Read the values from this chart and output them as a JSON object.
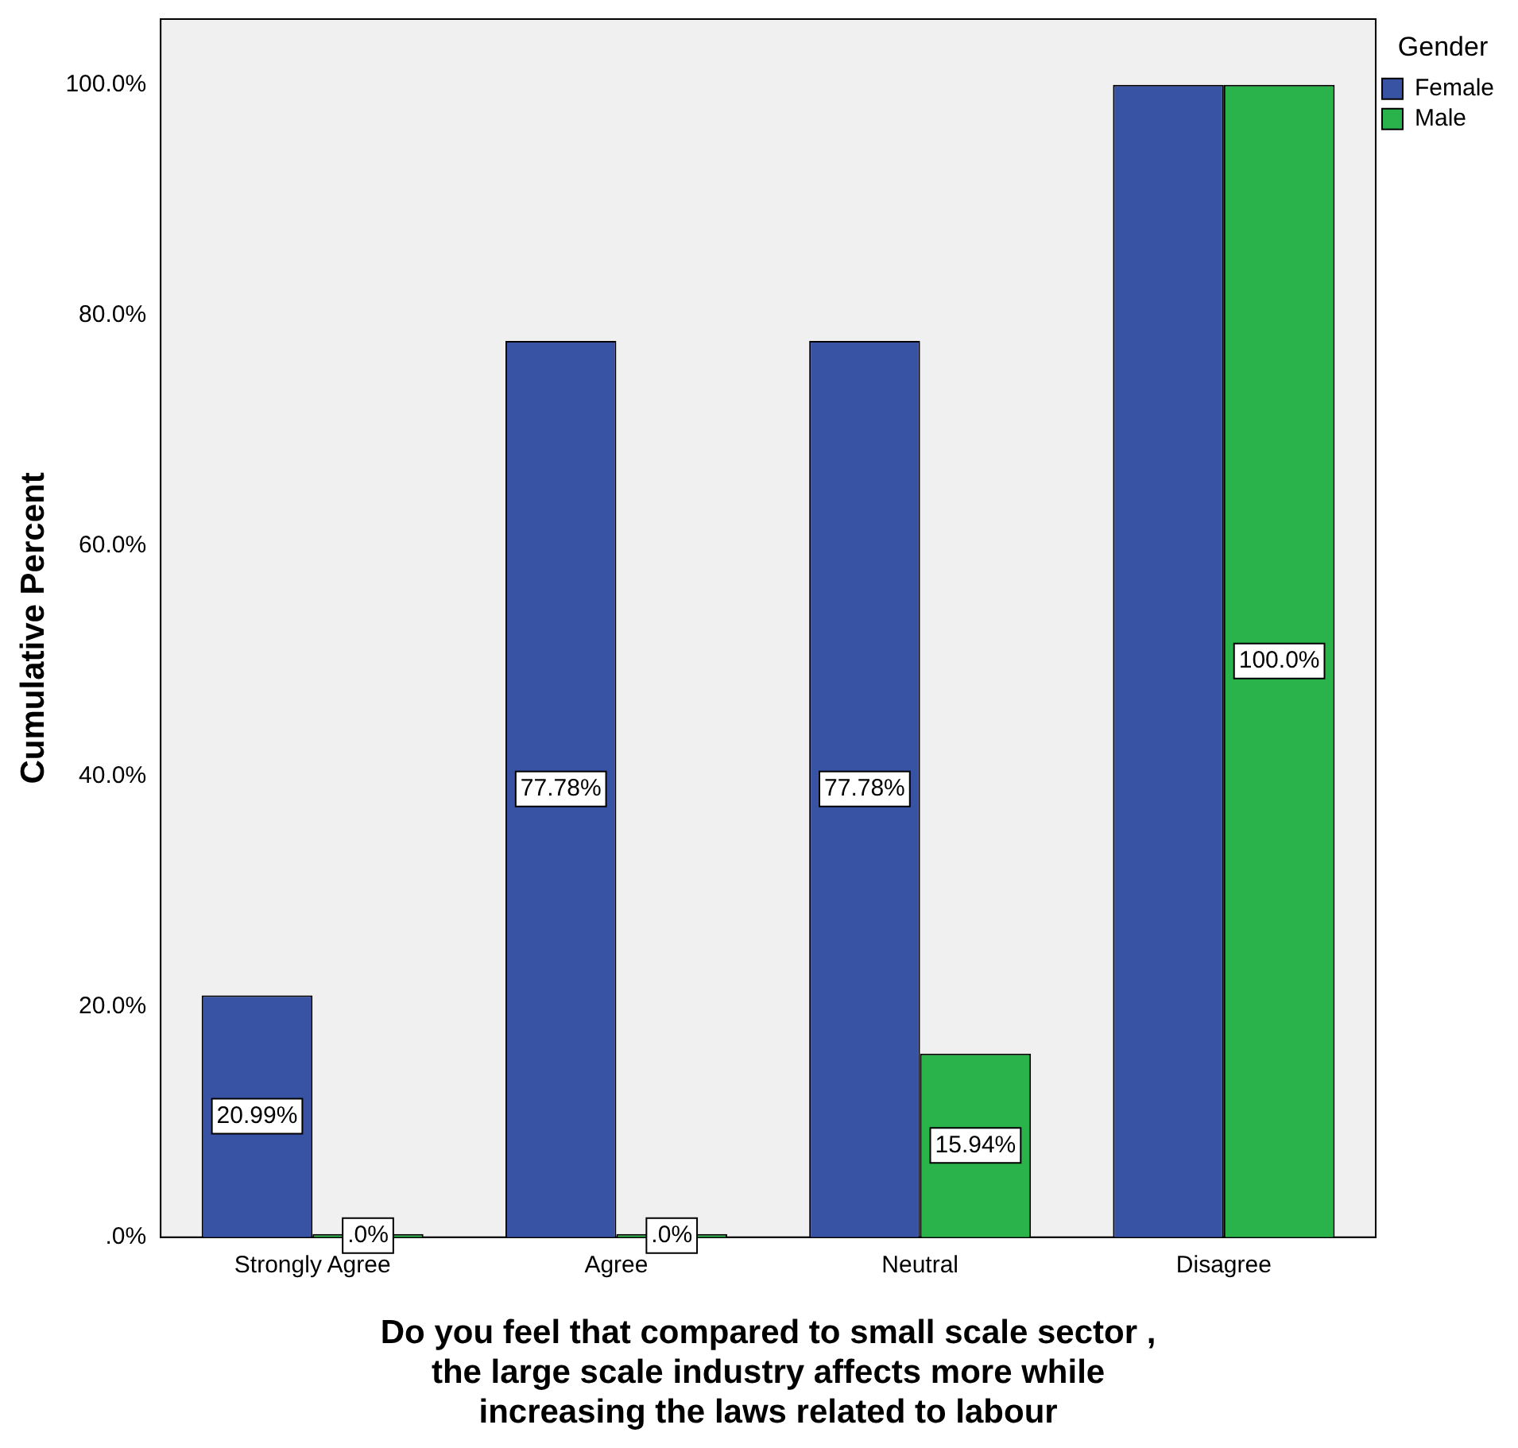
{
  "chart_data": {
    "type": "bar",
    "xlabel": "Do you feel that compared to small scale sector ,\nthe large scale industry affects more while\nincreasing the laws related to labour",
    "ylabel": "Cumulative Percent",
    "legend_title": "Gender",
    "legend": "top right",
    "categories": [
      "Strongly Agree",
      "Agree",
      "Neutral",
      "Disagree"
    ],
    "series": [
      {
        "name": "Female",
        "color": "#3953a4",
        "values": [
          20.99,
          77.78,
          77.78,
          100
        ],
        "value_labels": [
          "20.99%",
          "77.78%",
          "77.78%",
          null
        ]
      },
      {
        "name": "Male",
        "color": "#2ab34a",
        "values": [
          0,
          0,
          15.94,
          100
        ],
        "value_labels": [
          ".0%",
          ".0%",
          "15.94%",
          "100.0%"
        ]
      }
    ],
    "ylim": [
      0,
      105.7
    ],
    "yticks": [
      {
        "value": 0,
        "label": ".0%"
      },
      {
        "value": 20,
        "label": "20.0%"
      },
      {
        "value": 40,
        "label": "40.0%"
      },
      {
        "value": 60,
        "label": "60.0%"
      },
      {
        "value": 80,
        "label": "80.0%"
      },
      {
        "value": 100,
        "label": "100.0%"
      }
    ],
    "grid": false
  }
}
